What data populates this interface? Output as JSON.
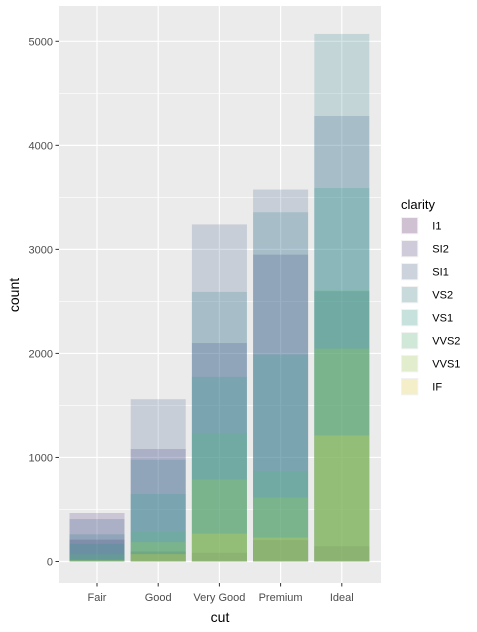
{
  "chart_data": {
    "type": "bar",
    "position": "identity (overlapping, semi-transparent)",
    "xlabel": "cut",
    "ylabel": "count",
    "categories": [
      "Fair",
      "Good",
      "Very Good",
      "Premium",
      "Ideal"
    ],
    "y_ticks": [
      0,
      1000,
      2000,
      3000,
      4000,
      5000
    ],
    "y_tick_labels": [
      "0",
      "1000",
      "2000",
      "3000",
      "4000",
      "5000"
    ],
    "ylim": [
      0,
      5200
    ],
    "grid": true,
    "legend": {
      "title": "clarity",
      "placement": "right"
    },
    "series": [
      {
        "name": "I1",
        "color": "#440154",
        "values": [
          210,
          96,
          84,
          205,
          146
        ]
      },
      {
        "name": "SI2",
        "color": "#46337E",
        "values": [
          466,
          1081,
          2100,
          2949,
          2598
        ]
      },
      {
        "name": "SI1",
        "color": "#365C8D",
        "values": [
          408,
          1560,
          3240,
          3575,
          4282
        ]
      },
      {
        "name": "VS2",
        "color": "#277F8E",
        "values": [
          261,
          978,
          2591,
          3357,
          5071
        ]
      },
      {
        "name": "VS1",
        "color": "#1FA187",
        "values": [
          170,
          648,
          1775,
          1989,
          3589
        ]
      },
      {
        "name": "VVS2",
        "color": "#4AC16D",
        "values": [
          69,
          286,
          1235,
          870,
          2606
        ]
      },
      {
        "name": "VVS1",
        "color": "#9FDA3A",
        "values": [
          17,
          186,
          789,
          616,
          2047
        ]
      },
      {
        "name": "IF",
        "color": "#FDE725",
        "values": [
          9,
          71,
          268,
          230,
          1212
        ]
      }
    ],
    "bar_alpha": 0.2
  }
}
